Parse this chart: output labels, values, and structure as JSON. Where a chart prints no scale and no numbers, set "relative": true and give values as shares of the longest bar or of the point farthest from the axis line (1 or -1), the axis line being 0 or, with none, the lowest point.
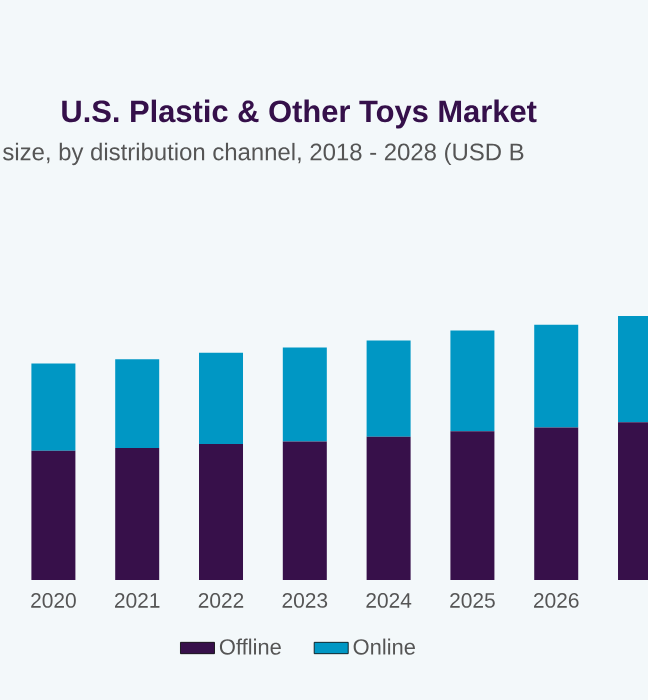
{
  "chart_data": {
    "type": "bar",
    "title": "U.S. Plastic & Other Toys Market",
    "subtitle": "size, by distribution channel, 2018 - 2028 (USD B",
    "categories": [
      "2020",
      "2021",
      "2022",
      "2023",
      "2024",
      "2025",
      "2026",
      null
    ],
    "stacked": true,
    "relative": true,
    "legend": "bottom",
    "series": [
      {
        "name": "Offline",
        "color": "#37104a",
        "values": [
          0.49,
          0.5,
          0.515,
          0.525,
          0.543,
          0.563,
          0.578,
          0.598
        ]
      },
      {
        "name": "Online",
        "color": "#0097c4",
        "values": [
          0.33,
          0.336,
          0.346,
          0.356,
          0.364,
          0.382,
          0.389,
          0.402
        ]
      }
    ]
  }
}
